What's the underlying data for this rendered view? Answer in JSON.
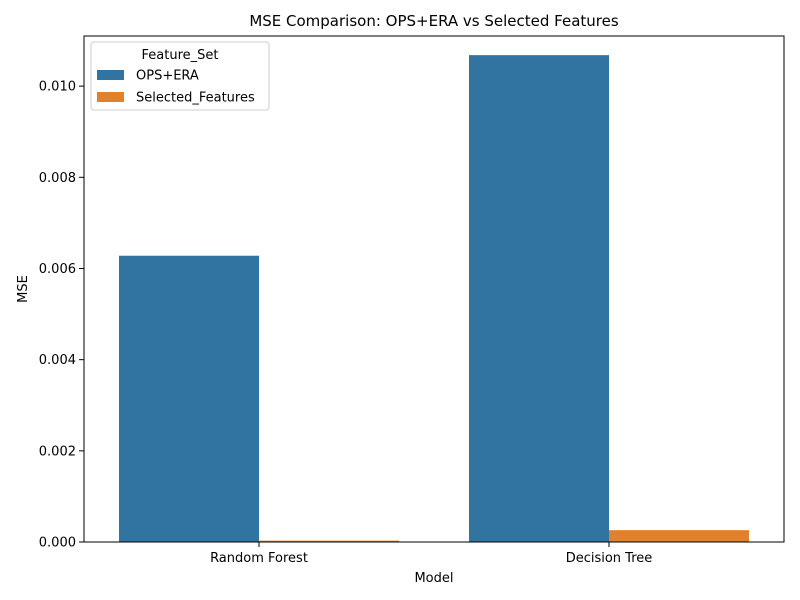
{
  "chart_data": {
    "type": "bar",
    "title": "MSE Comparison: OPS+ERA vs Selected Features",
    "xlabel": "Model",
    "ylabel": "MSE",
    "categories": [
      "Random Forest",
      "Decision Tree"
    ],
    "series": [
      {
        "name": "OPS+ERA",
        "color": "#3274a1",
        "values": [
          0.00628,
          0.01068
        ]
      },
      {
        "name": "Selected_Features",
        "color": "#e1812c",
        "values": [
          3e-05,
          0.00026
        ]
      }
    ],
    "ylim": [
      0,
      0.0111
    ],
    "yticks": [
      0.0,
      0.002,
      0.004,
      0.006,
      0.008,
      0.01
    ],
    "ytick_labels": [
      "0.000",
      "0.002",
      "0.004",
      "0.006",
      "0.008",
      "0.010"
    ],
    "grid": false,
    "legend": {
      "title": "Feature_Set",
      "position": "top-left"
    }
  }
}
